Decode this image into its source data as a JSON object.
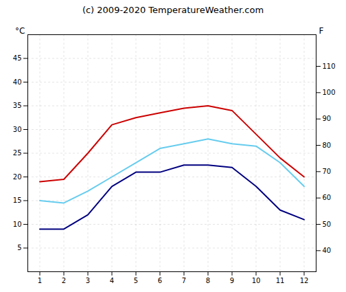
{
  "chart_data": {
    "type": "line",
    "title": "(c) 2009-2020 TemperatureWeather.com",
    "x": [
      1,
      2,
      3,
      4,
      5,
      6,
      7,
      8,
      9,
      10,
      11,
      12
    ],
    "xlim": [
      0.5,
      12.5
    ],
    "xticks": [
      1,
      2,
      3,
      4,
      5,
      6,
      7,
      8,
      9,
      10,
      11,
      12
    ],
    "ylabel": "°C",
    "ylim": [
      0,
      50
    ],
    "yticks": [
      5,
      10,
      15,
      20,
      25,
      30,
      35,
      40,
      45
    ],
    "y2label": "F",
    "y2lim": [
      32,
      122
    ],
    "y2ticks": [
      40,
      50,
      60,
      70,
      80,
      90,
      100,
      110
    ],
    "grid": true,
    "series": [
      {
        "color": "#cc0000",
        "values": [
          19,
          19.5,
          25,
          31,
          32.5,
          33.5,
          34.5,
          35,
          34,
          29,
          24,
          20
        ]
      },
      {
        "color": "#000080",
        "values": [
          9,
          9,
          12,
          18,
          21,
          21,
          22.5,
          22.5,
          22,
          18,
          13,
          11
        ]
      },
      {
        "color": "#66ccee",
        "values": [
          15,
          14.5,
          17,
          20,
          23,
          26,
          27,
          28,
          27,
          26.5,
          23,
          18
        ]
      }
    ]
  }
}
